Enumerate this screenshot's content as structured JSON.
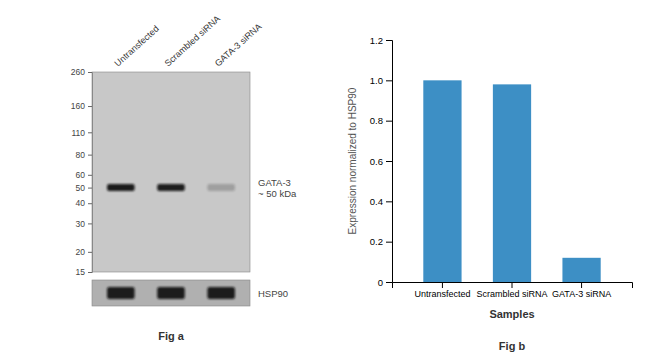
{
  "chart_data": [
    {
      "type": "blot",
      "title": "Fig a",
      "categories": [
        "Untransfected",
        "Scrambled siRNA",
        "GATA-3 siRNA"
      ],
      "ylim": [
        15,
        260
      ],
      "yticks": [
        260,
        160,
        110,
        80,
        60,
        50,
        40,
        30,
        20,
        15
      ],
      "log": "y",
      "annotations": [
        {
          "text": "GATA-3\n~ 50 kDa",
          "y": 50
        },
        {
          "text": "HSP90"
        }
      ]
    },
    {
      "type": "bar",
      "title": "Fig b",
      "categories": [
        "Untransfected",
        "Scrambled siRNA",
        "GATA-3 siRNA"
      ],
      "values": [
        1.0,
        0.98,
        0.12
      ],
      "color": "#3d8fc5",
      "xlabel": "Samples",
      "ylabel": "Expression normalized to HSP90",
      "ylim": [
        0,
        1.2
      ],
      "yticks": [
        0,
        0.2,
        0.4,
        0.6,
        0.8,
        {
          "value": 1.0,
          "label": "1.0"
        },
        1.2
      ],
      "grid": false
    }
  ]
}
